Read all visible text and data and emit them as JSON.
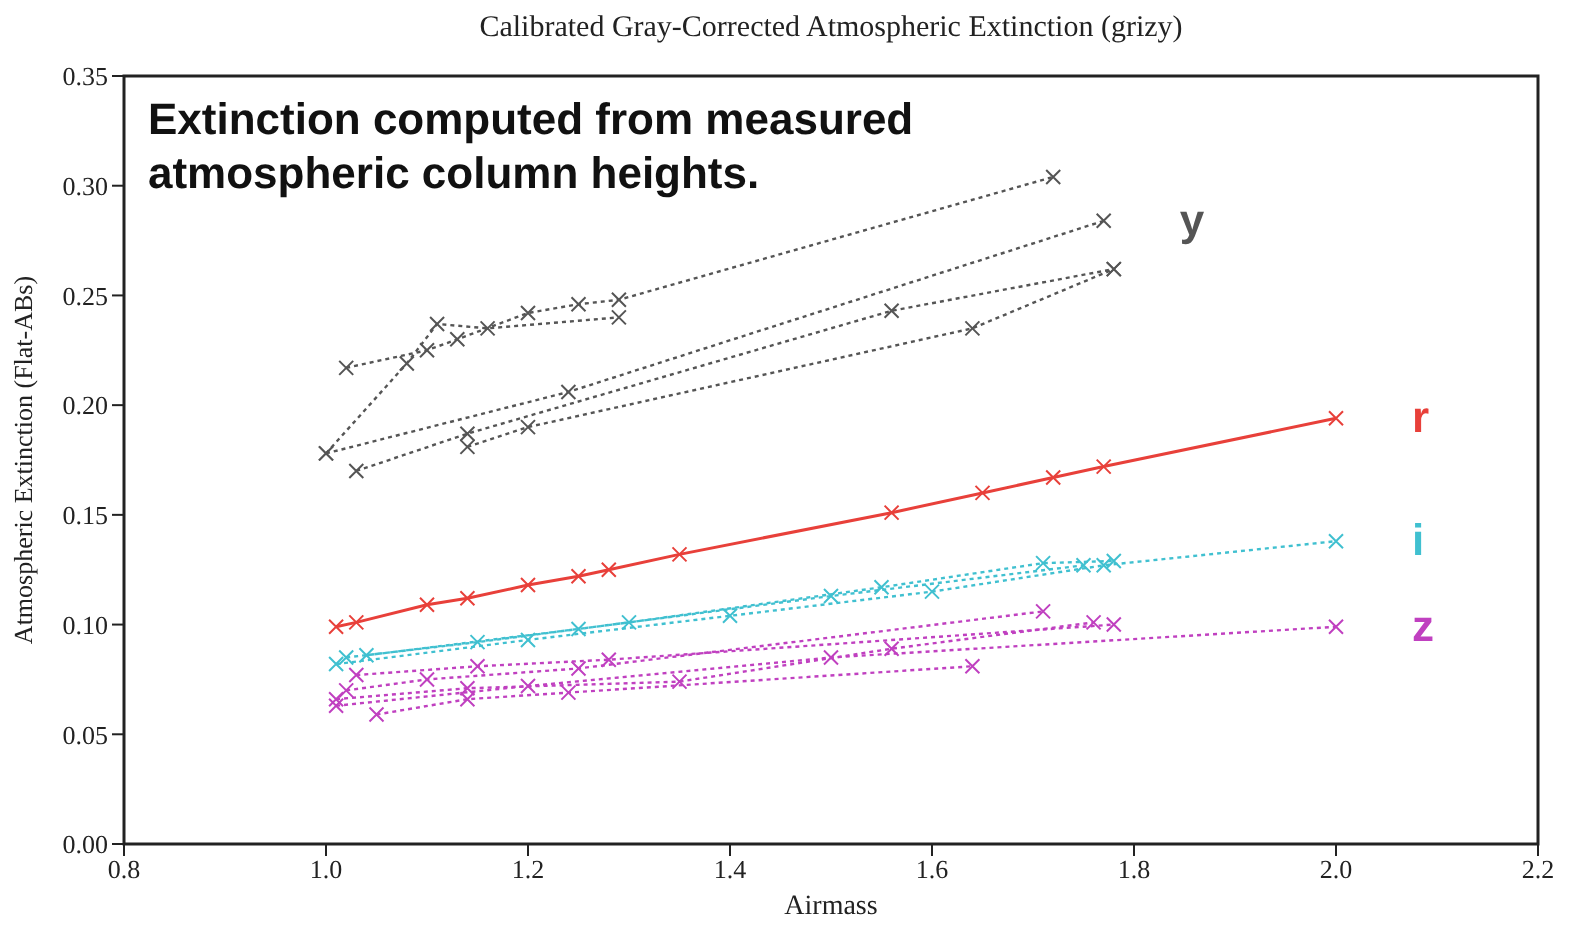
{
  "chart_data": {
    "type": "line",
    "title": "Calibrated Gray-Corrected Atmospheric Extinction (grizy)",
    "xlabel": "Airmass",
    "ylabel": "Atmospheric Extinction (Flat-ABs)",
    "annotations": [
      "Extinction computed from measured atmospheric column heights."
    ],
    "xlim": [
      0.8,
      2.2
    ],
    "xticks": [
      0.8,
      {
        "value": 1,
        "label": "1.0"
      },
      1.2,
      1.4,
      1.6,
      1.8,
      {
        "value": 2,
        "label": "2.0"
      },
      2.2
    ],
    "ylim": [
      0,
      0.35
    ],
    "yticks": [
      {
        "value": 0,
        "label": "0.00"
      },
      0.05,
      {
        "value": 0.1,
        "label": "0.10"
      },
      0.15,
      {
        "value": 0.2,
        "label": "0.20"
      },
      0.25,
      {
        "value": 0.3,
        "label": "0.30"
      },
      0.35
    ],
    "grid": false,
    "legend": false,
    "marker": "cross",
    "series": [
      {
        "color": "#555555",
        "line_style": "dotted",
        "x": [
          1.02,
          1.1,
          1.13,
          1.2,
          1.25,
          1.29,
          1.72
        ],
        "values": [
          0.217,
          0.225,
          0.23,
          0.242,
          0.246,
          0.248,
          0.304
        ]
      },
      {
        "color": "#555555",
        "line_style": "dotted",
        "x": [
          1.0,
          1.08,
          1.11,
          1.16,
          1.29
        ],
        "values": [
          0.178,
          0.219,
          0.237,
          0.235,
          0.24
        ]
      },
      {
        "name": "y",
        "color": "#555555",
        "line_style": "dotted",
        "x": [
          1.0,
          1.24,
          1.77
        ],
        "values": [
          0.178,
          0.206,
          0.284
        ]
      },
      {
        "color": "#555555",
        "line_style": "dotted",
        "x": [
          1.03,
          1.14,
          1.56,
          1.78
        ],
        "values": [
          0.17,
          0.187,
          0.243,
          0.262
        ]
      },
      {
        "color": "#555555",
        "line_style": "dotted",
        "x": [
          1.14,
          1.2,
          1.64,
          1.78
        ],
        "values": [
          0.181,
          0.19,
          0.235,
          0.262
        ]
      },
      {
        "name": "r",
        "color": "#e8403a",
        "line_style": "solid",
        "x": [
          1.01,
          1.03,
          1.1,
          1.14,
          1.2,
          1.25,
          1.28,
          1.35,
          1.56,
          1.65,
          1.72,
          1.77,
          2.0
        ],
        "values": [
          0.099,
          0.101,
          0.109,
          0.112,
          0.118,
          0.122,
          0.125,
          0.132,
          0.151,
          0.16,
          0.167,
          0.172,
          0.194
        ]
      },
      {
        "name": "i",
        "color": "#40c0d0",
        "line_style": "dotted",
        "x": [
          1.01,
          1.2,
          1.4,
          1.6,
          1.77,
          2.0
        ],
        "values": [
          0.082,
          0.093,
          0.104,
          0.115,
          0.127,
          0.138
        ]
      },
      {
        "color": "#40c0d0",
        "line_style": "dotted",
        "x": [
          1.02,
          1.15,
          1.3,
          1.55,
          1.71,
          1.78
        ],
        "values": [
          0.085,
          0.092,
          0.101,
          0.117,
          0.128,
          0.129
        ]
      },
      {
        "color": "#40c0d0",
        "line_style": "dotted",
        "x": [
          1.04,
          1.25,
          1.5,
          1.75
        ],
        "values": [
          0.086,
          0.098,
          0.113,
          0.127
        ]
      },
      {
        "name": "z",
        "color": "#c040c0",
        "line_style": "dotted",
        "x": [
          1.01,
          1.2,
          1.5,
          2.0
        ],
        "values": [
          0.063,
          0.072,
          0.085,
          0.099
        ]
      },
      {
        "color": "#c040c0",
        "line_style": "dotted",
        "x": [
          1.02,
          1.1,
          1.25,
          1.71
        ],
        "values": [
          0.07,
          0.075,
          0.08,
          0.106
        ]
      },
      {
        "color": "#c040c0",
        "line_style": "dotted",
        "x": [
          1.05,
          1.14,
          1.24,
          1.64
        ],
        "values": [
          0.059,
          0.066,
          0.069,
          0.081
        ]
      },
      {
        "color": "#c040c0",
        "line_style": "dotted",
        "x": [
          1.01,
          1.14,
          1.35,
          1.56,
          1.76
        ],
        "values": [
          0.066,
          0.071,
          0.074,
          0.089,
          0.101
        ]
      },
      {
        "color": "#c040c0",
        "line_style": "dotted",
        "x": [
          1.03,
          1.15,
          1.28,
          1.78
        ],
        "values": [
          0.077,
          0.081,
          0.084,
          0.1
        ]
      }
    ]
  }
}
